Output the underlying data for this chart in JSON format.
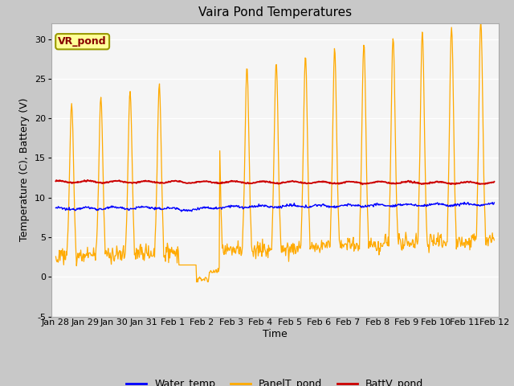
{
  "title": "Vaira Pond Temperatures",
  "xlabel": "Time",
  "ylabel": "Temperature (C), Battery (V)",
  "ylim": [
    -5,
    32
  ],
  "yticks": [
    -5,
    0,
    5,
    10,
    15,
    20,
    25,
    30
  ],
  "fig_bg_color": "#c8c8c8",
  "plot_bg_color": "#e8e8e8",
  "inner_plot_bg": "#f5f5f5",
  "water_temp_color": "#0000ff",
  "panel_temp_color": "#ffaa00",
  "batt_color": "#cc0000",
  "annotation_text": "VR_pond",
  "annotation_color": "#880000",
  "annotation_bg": "#ffff99",
  "annotation_border": "#999900",
  "tick_labels": [
    "Jan 28",
    "Jan 29",
    "Jan 30",
    "Jan 31",
    "Feb 1",
    "Feb 2",
    "Feb 3",
    "Feb 4",
    "Feb 5",
    "Feb 6",
    "Feb 7",
    "Feb 8",
    "Feb 9",
    "Feb 10",
    "Feb 11",
    "Feb 12"
  ],
  "tick_fontsize": 8.0,
  "ylabel_fontsize": 9,
  "xlabel_fontsize": 9,
  "title_fontsize": 11,
  "legend_fontsize": 9,
  "grid_color": "#ffffff",
  "grid_linewidth": 1.0,
  "spine_color": "#aaaaaa"
}
